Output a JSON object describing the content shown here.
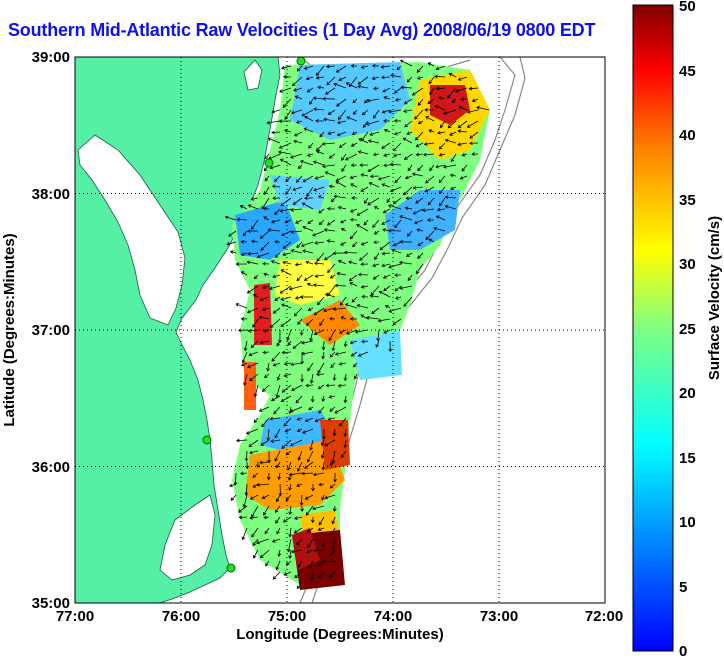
{
  "title": "Southern Mid-Atlantic Raw Velocities (1 Day Avg) 2008/06/19 0800 EDT",
  "map": {
    "x_ticks": [
      "77:00",
      "76:00",
      "75:00",
      "74:00",
      "73:00",
      "72:00"
    ],
    "y_ticks": [
      "39:00",
      "38:00",
      "37:00",
      "36:00",
      "35:00"
    ],
    "xlabel": "Longitude (Degrees:Minutes)",
    "ylabel": "Latitude (Degrees:Minutes)",
    "land_color": "#55f0a6",
    "grid": "dotted"
  },
  "colorbar": {
    "label": "Surface Velocity (cm/s)",
    "ticks": [
      "50",
      "45",
      "40",
      "35",
      "30",
      "25",
      "20",
      "15",
      "10",
      "5",
      "0"
    ],
    "range": [
      0,
      50
    ],
    "colormap": "jet"
  }
}
